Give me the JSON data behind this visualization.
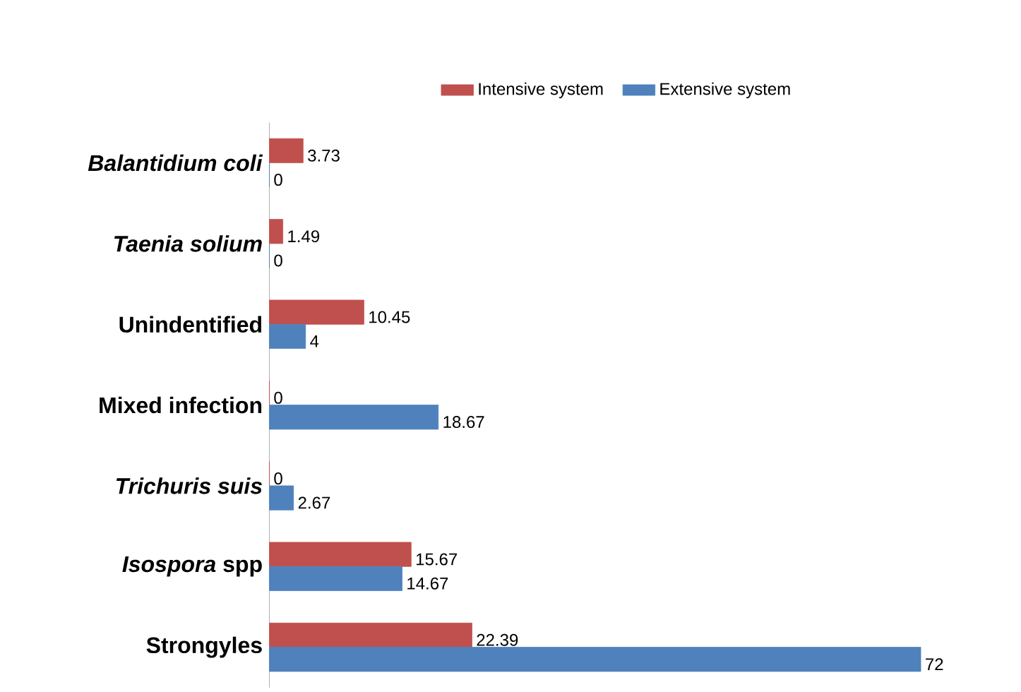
{
  "chart_data": {
    "type": "bar",
    "orientation": "horizontal",
    "data_labels": true,
    "legend": "top",
    "categories": [
      "*Balantidium coli*",
      "*Taenia solium*",
      "Unindentified",
      "Mixed infection",
      "*Trichuris suis*",
      "*Isospora* spp",
      "Strongyles"
    ],
    "series": [
      {
        "name": "Intensive system",
        "color": "#c0504d",
        "values": [
          3.73,
          1.49,
          10.45,
          0,
          0,
          15.67,
          22.39
        ]
      },
      {
        "name": "Extensive system",
        "color": "#4f81bd",
        "values": [
          0,
          0,
          4,
          18.67,
          2.67,
          14.67,
          72
        ]
      }
    ]
  }
}
